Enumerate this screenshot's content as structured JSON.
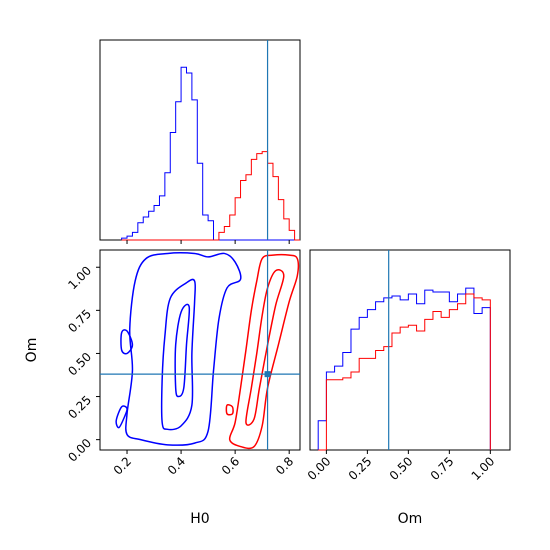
{
  "chart_data": {
    "type": "corner",
    "colors": {
      "series_a": "#0000ff",
      "series_b": "#ff0000",
      "truth": "#1f77b4"
    },
    "truth": {
      "H0": 0.72,
      "Om": 0.38
    },
    "xlabels": {
      "H0": "H0",
      "Om": "Om"
    },
    "ylabel": "Om",
    "h0_ticks": [
      "0.2",
      "0.4",
      "0.6",
      "0.8"
    ],
    "om_ticks": [
      "0.00",
      "0.25",
      "0.50",
      "0.75",
      "1.00"
    ],
    "h0_range": [
      0.1,
      0.84
    ],
    "om_range": [
      -0.06,
      1.1
    ],
    "om_hist_range": [
      -0.1,
      1.12
    ],
    "hist_h0": {
      "bin_edges": [
        0.18,
        0.2,
        0.22,
        0.24,
        0.26,
        0.28,
        0.3,
        0.32,
        0.34,
        0.36,
        0.38,
        0.4,
        0.42,
        0.44,
        0.46,
        0.48,
        0.5,
        0.52,
        0.54,
        0.56,
        0.58,
        0.6,
        0.62,
        0.64,
        0.66,
        0.68,
        0.7,
        0.72,
        0.74,
        0.76,
        0.78,
        0.8,
        0.82,
        0.84
      ],
      "series_a": [
        0.01,
        0.02,
        0.04,
        0.09,
        0.12,
        0.15,
        0.18,
        0.23,
        0.35,
        0.56,
        0.72,
        0.9,
        0.87,
        0.73,
        0.4,
        0.13,
        0.1,
        0,
        0,
        0,
        0,
        0,
        0,
        0,
        0,
        0,
        0,
        0,
        0,
        0,
        0,
        0,
        0
      ],
      "series_b": [
        0,
        0,
        0,
        0,
        0,
        0,
        0,
        0,
        0,
        0,
        0,
        0,
        0,
        0,
        0,
        0,
        0,
        0,
        0.04,
        0.07,
        0.13,
        0.22,
        0.31,
        0.34,
        0.42,
        0.45,
        0.46,
        0.4,
        0.33,
        0.21,
        0.11,
        0.05,
        0
      ]
    },
    "hist_om": {
      "bin_edges": [
        -0.05,
        0,
        0.05,
        0.1,
        0.15,
        0.2,
        0.25,
        0.3,
        0.35,
        0.4,
        0.45,
        0.5,
        0.55,
        0.6,
        0.65,
        0.7,
        0.75,
        0.8,
        0.85,
        0.9,
        0.95,
        1.0
      ],
      "series_a": [
        0.15,
        0.4,
        0.43,
        0.5,
        0.62,
        0.68,
        0.72,
        0.76,
        0.78,
        0.79,
        0.77,
        0.8,
        0.75,
        0.82,
        0.81,
        0.81,
        0.76,
        0.8,
        0.83,
        0.7,
        0.73
      ],
      "series_b": [
        0,
        0.36,
        0.36,
        0.37,
        0.4,
        0.47,
        0.47,
        0.51,
        0.53,
        0.6,
        0.63,
        0.64,
        0.61,
        0.67,
        0.71,
        0.68,
        0.72,
        0.75,
        0.8,
        0.78,
        0.77
      ]
    },
    "contours": {
      "series_a": [
        [
          [
            0.2,
            0.15
          ],
          [
            0.22,
            0.4
          ],
          [
            0.21,
            0.64
          ],
          [
            0.23,
            0.92
          ],
          [
            0.27,
            1.05
          ],
          [
            0.35,
            1.08
          ],
          [
            0.45,
            1.08
          ],
          [
            0.5,
            1.06
          ],
          [
            0.56,
            1.08
          ],
          [
            0.6,
            1.03
          ],
          [
            0.62,
            0.93
          ],
          [
            0.57,
            0.88
          ],
          [
            0.54,
            0.7
          ],
          [
            0.52,
            0.4
          ],
          [
            0.5,
            0.05
          ],
          [
            0.45,
            -0.02
          ],
          [
            0.35,
            -0.03
          ],
          [
            0.25,
            0.0
          ],
          [
            0.2,
            0.03
          ]
        ],
        [
          [
            0.17,
            0.07
          ],
          [
            0.19,
            0.13
          ],
          [
            0.2,
            0.18
          ],
          [
            0.18,
            0.19
          ],
          [
            0.16,
            0.11
          ]
        ],
        [
          [
            0.33,
            0.1
          ],
          [
            0.33,
            0.35
          ],
          [
            0.34,
            0.6
          ],
          [
            0.36,
            0.82
          ],
          [
            0.42,
            0.91
          ],
          [
            0.45,
            0.92
          ],
          [
            0.45,
            0.8
          ],
          [
            0.44,
            0.5
          ],
          [
            0.44,
            0.2
          ],
          [
            0.4,
            0.08
          ],
          [
            0.35,
            0.06
          ]
        ],
        [
          [
            0.38,
            0.3
          ],
          [
            0.38,
            0.55
          ],
          [
            0.4,
            0.74
          ],
          [
            0.43,
            0.77
          ],
          [
            0.42,
            0.55
          ],
          [
            0.41,
            0.3
          ],
          [
            0.39,
            0.25
          ]
        ],
        [
          [
            0.18,
            0.62
          ],
          [
            0.2,
            0.63
          ],
          [
            0.22,
            0.55
          ],
          [
            0.2,
            0.5
          ],
          [
            0.18,
            0.52
          ]
        ]
      ],
      "series_b": [
        [
          [
            0.58,
            0.0
          ],
          [
            0.6,
            0.1
          ],
          [
            0.62,
            0.3
          ],
          [
            0.64,
            0.52
          ],
          [
            0.66,
            0.75
          ],
          [
            0.68,
            0.92
          ],
          [
            0.7,
            1.05
          ],
          [
            0.74,
            1.07
          ],
          [
            0.8,
            1.07
          ],
          [
            0.83,
            1.05
          ],
          [
            0.83,
            0.95
          ],
          [
            0.8,
            0.8
          ],
          [
            0.76,
            0.55
          ],
          [
            0.72,
            0.3
          ],
          [
            0.7,
            0.08
          ],
          [
            0.67,
            -0.04
          ],
          [
            0.62,
            -0.04
          ]
        ],
        [
          [
            0.64,
            0.1
          ],
          [
            0.66,
            0.3
          ],
          [
            0.68,
            0.5
          ],
          [
            0.7,
            0.72
          ],
          [
            0.72,
            0.88
          ],
          [
            0.75,
            0.98
          ],
          [
            0.78,
            0.95
          ],
          [
            0.75,
            0.78
          ],
          [
            0.72,
            0.55
          ],
          [
            0.69,
            0.3
          ],
          [
            0.67,
            0.12
          ]
        ],
        [
          [
            0.57,
            0.2
          ],
          [
            0.59,
            0.19
          ],
          [
            0.59,
            0.15
          ],
          [
            0.57,
            0.15
          ]
        ]
      ]
    }
  }
}
